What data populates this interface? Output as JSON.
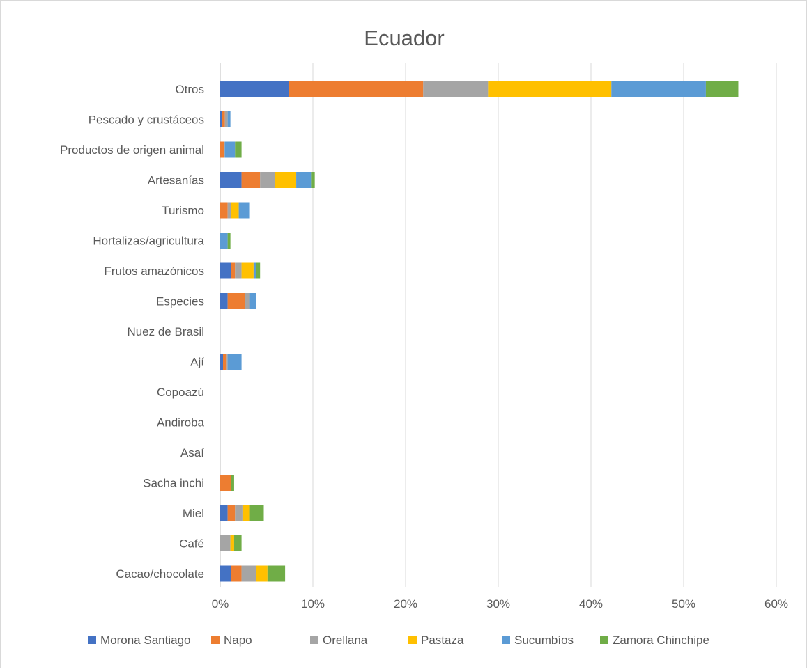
{
  "chart_data": {
    "type": "bar",
    "orientation": "horizontal",
    "stacked": true,
    "title": "Ecuador",
    "categories": [
      "Otros",
      "Pescado y crustáceos",
      "Productos de origen animal",
      "Artesanías",
      "Turismo",
      "Hortalizas/agricultura",
      "Frutos amazónicos",
      "Especies",
      "Nuez de Brasil",
      "Ají",
      "Copoazú",
      "Andiroba",
      "Asaí",
      "Sacha inchi",
      "Miel",
      "Café",
      "Cacao/chocolate"
    ],
    "series": [
      {
        "name": "Morona Santiago",
        "color": "#4472C4",
        "values": [
          7.4,
          0.2,
          0.0,
          2.3,
          0.0,
          0.0,
          1.2,
          0.8,
          0,
          0.3,
          0,
          0,
          0,
          0.0,
          0.8,
          0.0,
          1.2
        ]
      },
      {
        "name": "Napo",
        "color": "#ED7D31",
        "values": [
          14.5,
          0.3,
          0.4,
          2.0,
          0.8,
          0.0,
          0.4,
          1.9,
          0,
          0.4,
          0,
          0,
          0,
          1.2,
          0.8,
          0.0,
          1.1
        ]
      },
      {
        "name": "Orellana",
        "color": "#A5A5A5",
        "values": [
          7.0,
          0.3,
          0.1,
          1.6,
          0.4,
          0.0,
          0.7,
          0.5,
          0,
          0.1,
          0,
          0,
          0,
          0.0,
          0.8,
          1.1,
          1.6
        ]
      },
      {
        "name": "Pastaza",
        "color": "#FFC000",
        "values": [
          13.3,
          0.0,
          0.0,
          2.3,
          0.8,
          0.0,
          1.3,
          0.0,
          0,
          0.0,
          0,
          0,
          0,
          0.0,
          0.8,
          0.4,
          1.2
        ]
      },
      {
        "name": "Sucumbíos",
        "color": "#5B9BD5",
        "values": [
          10.2,
          0.3,
          1.1,
          1.6,
          1.2,
          0.8,
          0.3,
          0.7,
          0,
          1.5,
          0,
          0,
          0,
          0.0,
          0.0,
          0.0,
          0.0
        ]
      },
      {
        "name": "Zamora Chinchipe",
        "color": "#70AD47",
        "values": [
          3.5,
          0.0,
          0.7,
          0.4,
          0.0,
          0.3,
          0.4,
          0.0,
          0,
          0.0,
          0,
          0,
          0,
          0.3,
          1.5,
          0.8,
          1.9
        ]
      }
    ],
    "xlim": [
      0,
      60
    ],
    "xticks": [
      "0%",
      "10%",
      "20%",
      "30%",
      "40%",
      "50%",
      "60%"
    ],
    "xtick_values": [
      0,
      10,
      20,
      30,
      40,
      50,
      60
    ],
    "grid": true,
    "legend": "bottom"
  }
}
